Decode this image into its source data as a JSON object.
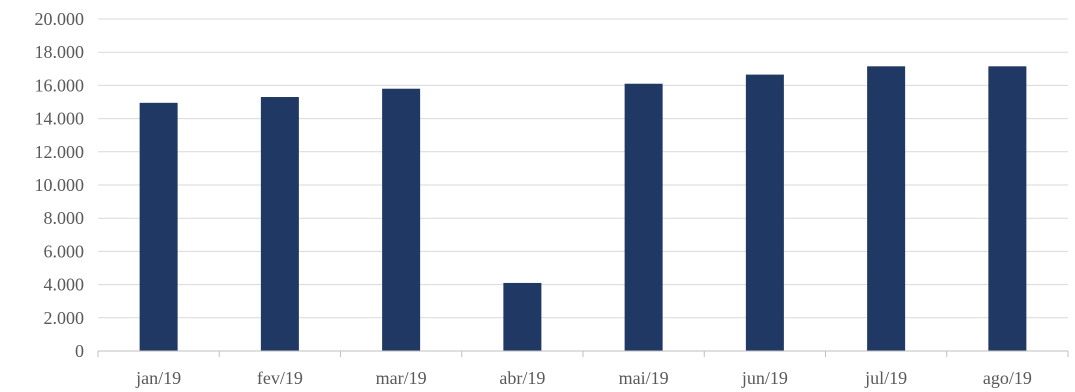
{
  "chart_data": {
    "type": "bar",
    "title": "",
    "xlabel": "",
    "ylabel": "",
    "categories": [
      "jan/19",
      "fev/19",
      "mar/19",
      "abr/19",
      "mai/19",
      "jun/19",
      "jul/19",
      "ago/19"
    ],
    "values": [
      14950,
      15300,
      15800,
      4100,
      16100,
      16650,
      17150,
      17150
    ],
    "ylim": [
      0,
      20000
    ],
    "yticks": [
      "0",
      "2.000",
      "4.000",
      "6.000",
      "8.000",
      "10.000",
      "12.000",
      "14.000",
      "16.000",
      "18.000",
      "20.000"
    ],
    "ytick_values": [
      0,
      2000,
      4000,
      6000,
      8000,
      10000,
      12000,
      14000,
      16000,
      18000,
      20000
    ],
    "grid": true,
    "legend": "none",
    "bar_color": "#1f3864"
  }
}
